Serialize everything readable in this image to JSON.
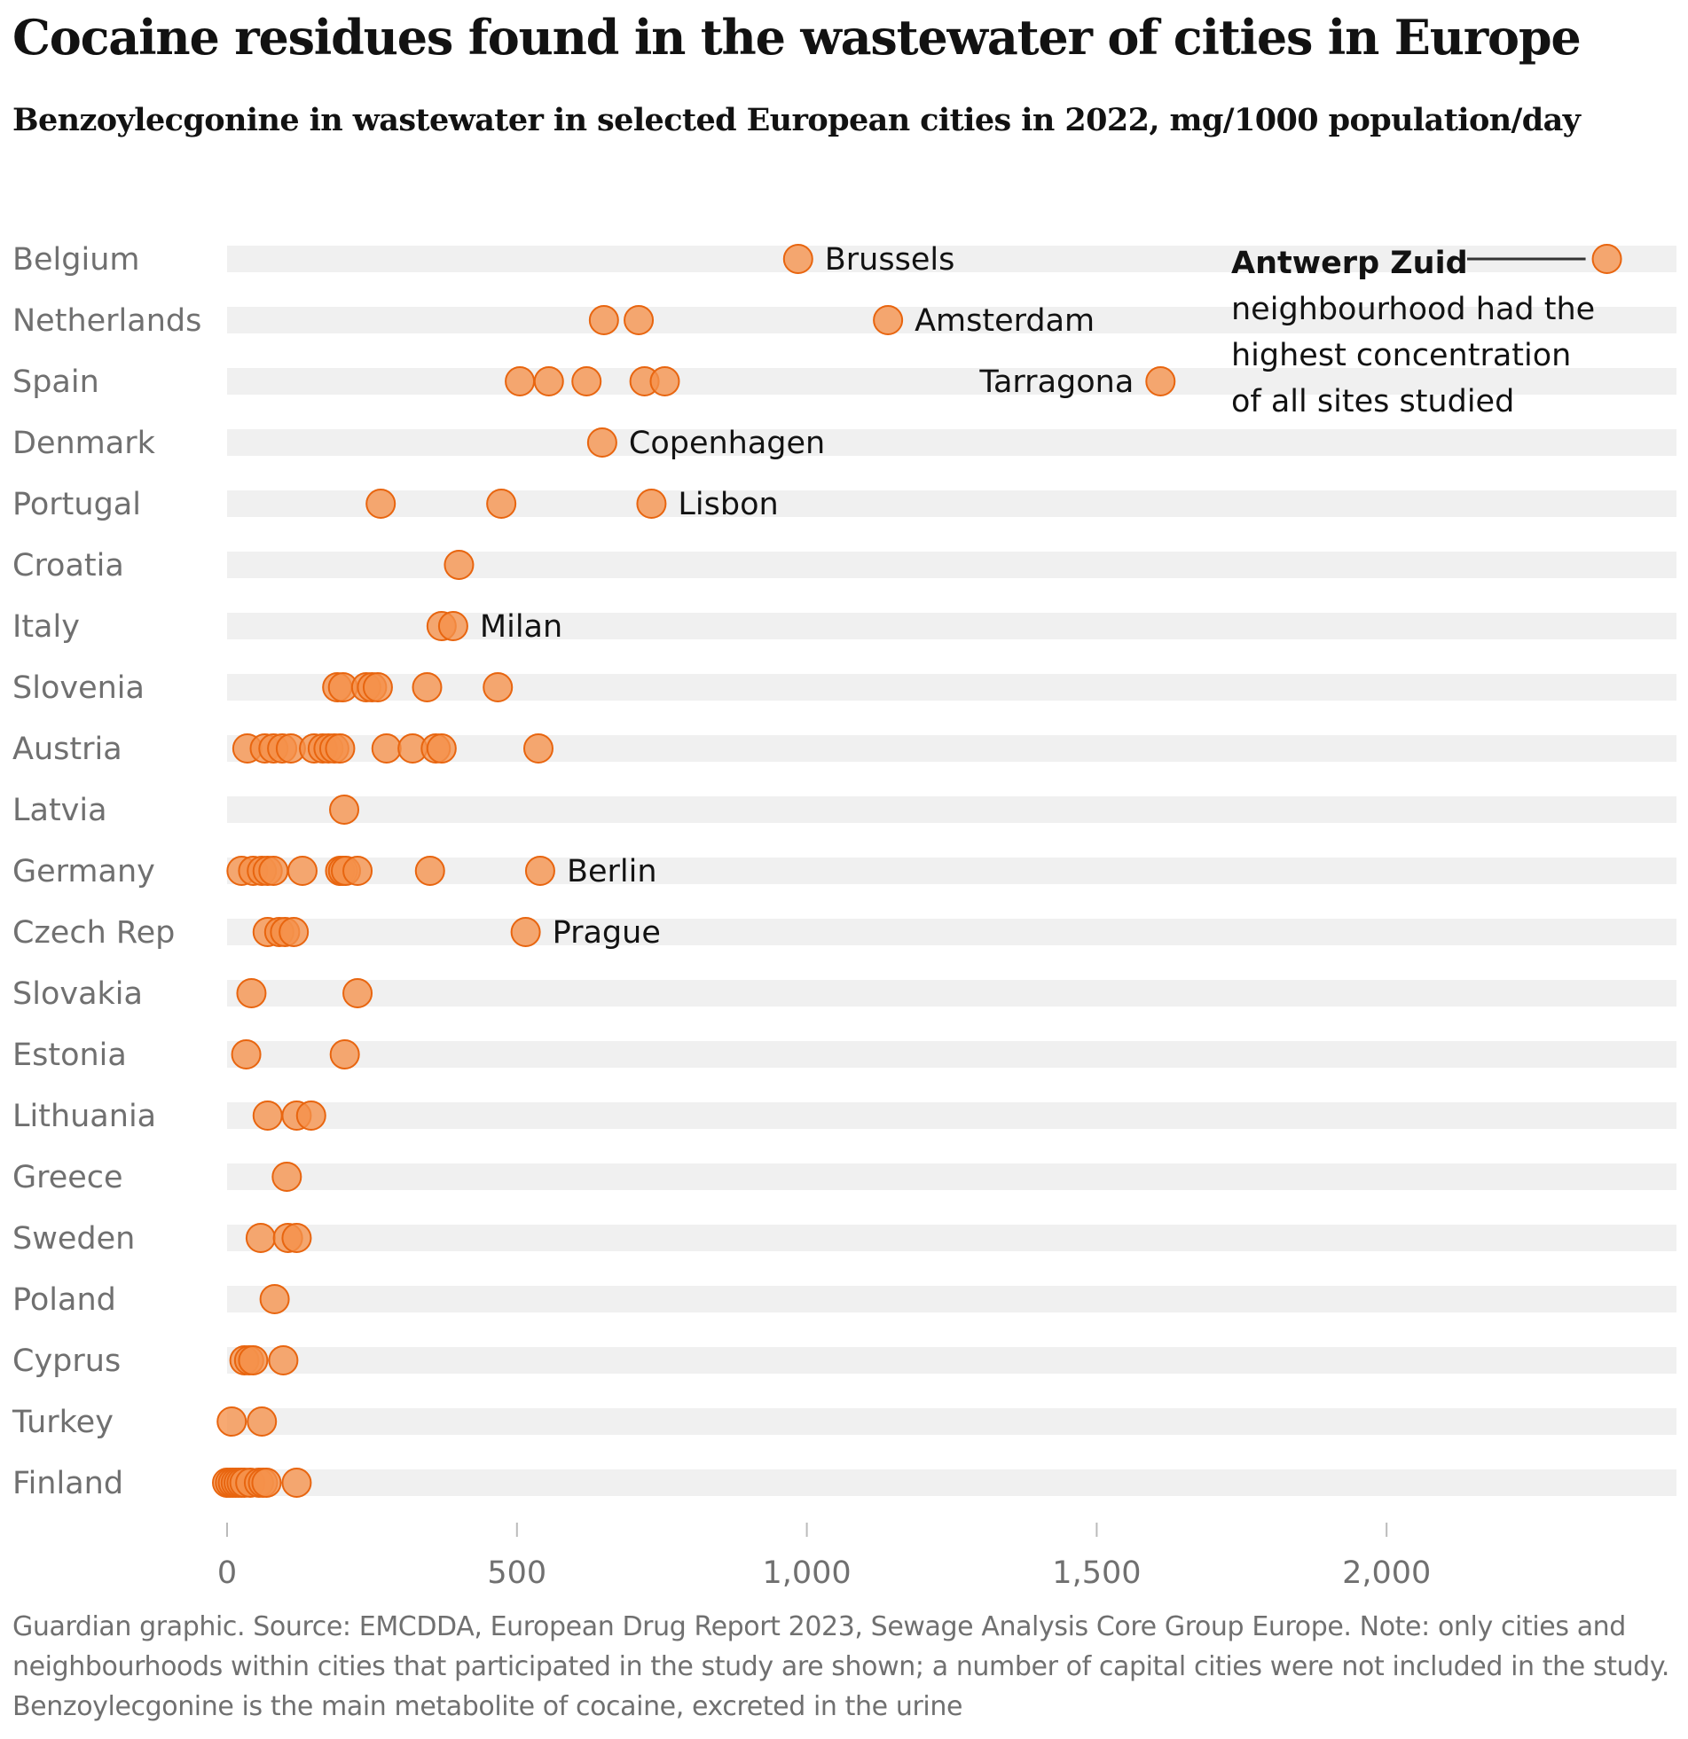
{
  "title": "Cocaine residues found in the wastewater of cities in Europe",
  "subtitle": "Benzoylecgonine in wastewater in selected European cities in 2022, mg/1000 population/day",
  "source": "Guardian graphic. Source: EMCDDA, European Drug Report 2023, Sewage Analysis Core Group Europe. Note: only cities and neighbourhoods within cities that participated in the study are shown; a number of capital cities were not included in the study. Benzoylecgonine is the main metabolite of cocaine, excreted in the urine",
  "colors": {
    "point_fill": "#f5914a",
    "point_stroke": "#e8650f",
    "band": "#f0f0f0",
    "text": "#121212",
    "muted": "#707070"
  },
  "chart_data": {
    "type": "scatter",
    "title": "Cocaine residues found in the wastewater of cities in Europe",
    "subtitle": "Benzoylecgonine in wastewater in selected European cities in 2022, mg/1000 population/day",
    "xlabel": "",
    "ylabel": "",
    "xlim": [
      0,
      2500
    ],
    "xticks": [
      0,
      500,
      1000,
      1500,
      2000
    ],
    "xtick_labels": [
      "0",
      "500",
      "1,000",
      "1,500",
      "2,000"
    ],
    "grid": false,
    "countries": [
      {
        "name": "Belgium",
        "values": [
          985,
          2380
        ]
      },
      {
        "name": "Netherlands",
        "values": [
          650,
          710,
          1140
        ]
      },
      {
        "name": "Spain",
        "values": [
          505,
          555,
          620,
          720,
          755,
          1610
        ]
      },
      {
        "name": "Denmark",
        "values": [
          647
        ]
      },
      {
        "name": "Portugal",
        "values": [
          265,
          473,
          732
        ]
      },
      {
        "name": "Croatia",
        "values": [
          400
        ]
      },
      {
        "name": "Italy",
        "values": [
          370,
          390
        ]
      },
      {
        "name": "Slovenia",
        "values": [
          190,
          200,
          240,
          250,
          260,
          345,
          467
        ]
      },
      {
        "name": "Austria",
        "values": [
          35,
          65,
          80,
          95,
          110,
          150,
          165,
          175,
          185,
          195,
          275,
          320,
          360,
          370,
          537
        ]
      },
      {
        "name": "Latvia",
        "values": [
          202
        ]
      },
      {
        "name": "Germany",
        "values": [
          25,
          45,
          60,
          70,
          80,
          130,
          195,
          200,
          205,
          225,
          350,
          540
        ]
      },
      {
        "name": "Czech Rep",
        "values": [
          70,
          90,
          100,
          115,
          515
        ]
      },
      {
        "name": "Slovakia",
        "values": [
          42,
          225
        ]
      },
      {
        "name": "Estonia",
        "values": [
          33,
          203
        ]
      },
      {
        "name": "Lithuania",
        "values": [
          70,
          120,
          145
        ]
      },
      {
        "name": "Greece",
        "values": [
          103
        ]
      },
      {
        "name": "Sweden",
        "values": [
          58,
          105,
          120
        ]
      },
      {
        "name": "Poland",
        "values": [
          82
        ]
      },
      {
        "name": "Cyprus",
        "values": [
          30,
          38,
          45,
          97
        ]
      },
      {
        "name": "Turkey",
        "values": [
          8,
          60
        ]
      },
      {
        "name": "Finland",
        "values": [
          0,
          5,
          10,
          15,
          20,
          25,
          30,
          40,
          55,
          62,
          68,
          120
        ]
      }
    ],
    "labels": [
      {
        "city": "Brussels",
        "country": "Belgium",
        "value": 985,
        "side": "right"
      },
      {
        "city": "Amsterdam",
        "country": "Netherlands",
        "value": 1140,
        "side": "right"
      },
      {
        "city": "Tarragona",
        "country": "Spain",
        "value": 1610,
        "side": "left"
      },
      {
        "city": "Copenhagen",
        "country": "Denmark",
        "value": 647,
        "side": "right"
      },
      {
        "city": "Lisbon",
        "country": "Portugal",
        "value": 732,
        "side": "right"
      },
      {
        "city": "Milan",
        "country": "Italy",
        "value": 390,
        "side": "right"
      },
      {
        "city": "Berlin",
        "country": "Germany",
        "value": 540,
        "side": "right"
      },
      {
        "city": "Prague",
        "country": "Czech Rep",
        "value": 515,
        "side": "right"
      }
    ],
    "annotation": {
      "country": "Belgium",
      "value": 2380,
      "bold_text": "Antwerp Zuid",
      "lines": [
        "neighbourhood had the",
        "highest concentration",
        "of all sites studied"
      ]
    }
  }
}
